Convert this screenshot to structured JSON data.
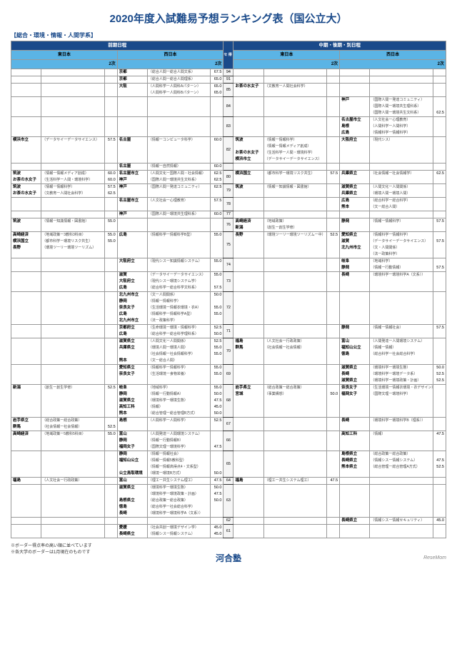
{
  "title": "2020年度入試難易予想ランキング表（国公立大）",
  "category": "【総合・環境・情報・人間学系】",
  "headers": {
    "zenki": "前期日程",
    "chuki": "中期・後期・別日程",
    "east": "東日本",
    "west": "西日本",
    "niji": "2次",
    "center": "セ\n得\n点\n率"
  },
  "rows": [
    {
      "c": "94",
      "wz": [
        [
          "京都",
          "（総合人間ー総合人間文系）",
          "67.5"
        ]
      ]
    },
    {
      "c": "91",
      "wz": [
        [
          "京都",
          "（総合人間ー総合人間理系）",
          "65.0"
        ]
      ]
    },
    {
      "c": "85",
      "wz": [
        [
          "大阪",
          "（人間科学ー人間科Aパターン）",
          "65.0"
        ],
        [
          "",
          "（人間科学ー人間科Bパターン）",
          "65.0"
        ]
      ],
      "ec": [
        [
          "お茶の水女子",
          "（文教育ー人間社会科学）",
          ""
        ]
      ]
    },
    {
      "c": "84",
      "wc": [
        [
          "神戸",
          "（国際人間ー発達コミュニティ）",
          ""
        ],
        [
          "",
          "（国際人間ー環境共生理科系）",
          ""
        ],
        [
          "",
          "（国際人間ー環境共生文科系）",
          "62.5"
        ]
      ]
    },
    {
      "c": "83",
      "wc": [
        [
          "名古屋市立",
          "（人文社会ー心理教育）",
          ""
        ],
        [
          "島根",
          "（人間科学ー人間科学）",
          ""
        ],
        [
          "広島",
          "（情報科学ー情報科学）",
          ""
        ]
      ]
    },
    {
      "c": "82",
      "ez": [
        [
          "横浜市立",
          "（データサイーデータサイエンス）",
          "57.5"
        ]
      ],
      "wz": [
        [
          "名古屋",
          "（情報ーコンピュータ科学）",
          "60.0"
        ]
      ],
      "ec": [
        [
          "筑波",
          "（情報ー情報科学）",
          ""
        ],
        [
          "",
          "（情報ー情報メディア創成）",
          ""
        ],
        [
          "お茶の水女子",
          "（生活科学ー人間・環境科学）",
          ""
        ],
        [
          "横浜市立",
          "（データサイーデータサイエンス）",
          ""
        ]
      ],
      "wc": [
        [
          "大阪府立",
          "（現代シス）",
          ""
        ]
      ]
    },
    {
      "c": "",
      "wz": [
        [
          "名古屋",
          "（情報ー自然情報）",
          "60.0"
        ]
      ]
    },
    {
      "c": "80",
      "ez": [
        [
          "筑波",
          "（情報ー情報メディア創成）",
          "60.0"
        ],
        [
          "お茶の水女子",
          "（生活科学ー人間・環境科学）",
          "60.0"
        ]
      ],
      "wz": [
        [
          "名古屋市立",
          "（人間文化ー国際人間・社会情報）",
          "62.5"
        ],
        [
          "神戸",
          "（国際人間ー環境共生文科系）",
          "62.5"
        ]
      ],
      "ec": [
        [
          "横浜国立",
          "（都市科学ー環境リスク共生）",
          "57.5"
        ]
      ],
      "wc": [
        [
          "兵庫県立",
          "（社会情報ー社会情報学）",
          "62.5"
        ]
      ]
    },
    {
      "c": "79",
      "ez": [
        [
          "筑波",
          "（情報ー情報科学）",
          "57.5"
        ],
        [
          "お茶の水女子",
          "（文教育ー人間社会科学）",
          "62.5"
        ]
      ],
      "wz": [
        [
          "神戸",
          "（国際人間ー発達コミュニティ）",
          "62.5"
        ]
      ],
      "ec": [
        [
          "筑波",
          "（情報ー知識情報・図書館）",
          ""
        ]
      ],
      "wc": [
        [
          "滋賀県立",
          "（人間文化ー人間関係）",
          ""
        ],
        [
          "兵庫県立",
          "（環境人間ー環境人間）",
          ""
        ]
      ]
    },
    {
      "c": "78",
      "wz": [
        [
          "名古屋市立",
          "（人文社会ー心理教育）",
          "57.5"
        ]
      ],
      "wc": [
        [
          "広島",
          "（総合科学ー総合科学）",
          ""
        ],
        [
          "熊本",
          "（文ー総合人間）",
          ""
        ]
      ]
    },
    {
      "c": "77",
      "wz": [
        [
          "神戸",
          "（国際人間ー環境共生理科系）",
          "60.0"
        ]
      ]
    },
    {
      "c": "76",
      "ez": [
        [
          "筑波",
          "（情報ー知識情報・図書館）",
          "55.0"
        ]
      ],
      "ec": [
        [
          "高崎経済",
          "（地域政策）",
          ""
        ],
        [
          "新潟",
          "（創生ー創生学修）",
          ""
        ]
      ],
      "wc": [
        [
          "静岡",
          "（情報ー情報科学）",
          "57.5"
        ]
      ]
    },
    {
      "c": "75",
      "ez": [
        [
          "高崎経済",
          "（地域政策ー3教科3科目）",
          "55.0"
        ],
        [
          "横浜国立",
          "（都市科学ー環境リスク共生）",
          "55.0"
        ],
        [
          "長野",
          "（環境ツーリー環境ツーリズム）",
          ""
        ]
      ],
      "wz": [
        [
          "広島",
          "（情報科学ー情報科学B型）",
          "55.0"
        ]
      ],
      "ec": [
        [
          "長野",
          "（環境ツーリー環境ツーリズムー中）",
          "52.5"
        ]
      ],
      "wc": [
        [
          "愛知県立",
          "（情報科学ー情報科学）",
          ""
        ],
        [
          "滋賀",
          "（データサイーデータサイエンス）",
          "57.5"
        ],
        [
          "北九州市立",
          "（文・人間関係）",
          ""
        ],
        [
          "",
          "（法ー政策科学）",
          ""
        ]
      ]
    },
    {
      "c": "74",
      "wz": [
        [
          "大阪府立",
          "（現代シスー知識情報システム）",
          "55.0"
        ]
      ],
      "wc": [
        [
          "岐阜",
          "（地域科学）",
          ""
        ],
        [
          "静岡",
          "（情報ー行動情報）",
          "57.5"
        ]
      ]
    },
    {
      "c": "73",
      "wz": [
        [
          "滋賀",
          "（データサイーデータサイエンス）",
          "55.0"
        ],
        [
          "大阪府立",
          "（現代シスー環境システム学）",
          ""
        ],
        [
          "広島",
          "（総合科学ー総合科学文科系）",
          "57.5"
        ]
      ],
      "wc": [
        [
          "長崎",
          "（環境科学ー環境科学A（文系））",
          ""
        ]
      ]
    },
    {
      "c": "72",
      "wz": [
        [
          "北九州市立",
          "（文ー人間関係）",
          "50.0"
        ],
        [
          "静岡",
          "（情報ー情報科学）",
          ""
        ],
        [
          "奈良女子",
          "（生活環境ー情報衣環境・衣A）",
          "55.0"
        ],
        [
          "広島",
          "（情報科学ー情報科学A型）",
          "55.0"
        ],
        [
          "北九州市立",
          "（法ー政策科学）",
          ""
        ]
      ]
    },
    {
      "c": "71",
      "wz": [
        [
          "京都府立",
          "（生命環境ー環境・情報科学）",
          "52.5"
        ],
        [
          "広島",
          "（総合科学ー総合科学理科系）",
          "50.0"
        ]
      ],
      "wc": [
        [
          "静岡",
          "（情報ー情報社会）",
          "57.5"
        ]
      ]
    },
    {
      "c": "70",
      "wz": [
        [
          "滋賀県立",
          "（人間文化ー人間関係）",
          "52.5"
        ],
        [
          "兵庫県立",
          "（環境人間ー環境人間）",
          "55.0"
        ],
        [
          "",
          "（社会情報ー社会情報科学）",
          "55.0"
        ],
        [
          "熊本",
          "（文ー総合人間）",
          ""
        ]
      ],
      "ec": [
        [
          "福島",
          "（人文社会ー行政政策）",
          ""
        ],
        [
          "群馬",
          "（社会情報ー社会情報）",
          ""
        ]
      ],
      "wc": [
        [
          "富山",
          "（人間発達ー人間環境システム）",
          ""
        ],
        [
          "福知山公立",
          "（情報ー情報）",
          ""
        ],
        [
          "徳島",
          "（総合科学ー社会総合科学）",
          ""
        ]
      ]
    },
    {
      "c": "69",
      "wz": [
        [
          "愛知県立",
          "（情報科学ー情報科学）",
          "55.0"
        ],
        [
          "奈良女子",
          "（生活環境ー食物栄養）",
          "55.0"
        ]
      ],
      "wc": [
        [
          "滋賀県立",
          "（環境科学ー環境生態）",
          "50.0"
        ],
        [
          "長崎",
          "（環境科学ー環境データ系）",
          "52.5"
        ],
        [
          "滋賀県立",
          "（環境科学ー環境政策・計画）",
          "52.5"
        ]
      ]
    },
    {
      "c": "68",
      "ez": [
        [
          "新潟",
          "（創生ー創生学修）",
          "52.5"
        ]
      ],
      "wz": [
        [
          "岐阜",
          "（地域科学）",
          "55.0"
        ],
        [
          "静岡",
          "（情報ー行動情報A）",
          "50.0"
        ],
        [
          "滋賀県立",
          "（環境科学ー環境生態）",
          "47.5"
        ],
        [
          "高知工科",
          "（情報）",
          "45.0"
        ],
        [
          "熊本",
          "（総合管理ー総合管理B方式）",
          "50.0"
        ]
      ],
      "ec": [
        [
          "岩手県立",
          "（総合政策ー総合政策）",
          ""
        ],
        [
          "宮城",
          "（事業構想）",
          "50.0"
        ]
      ],
      "wc": [
        [
          "奈良女子",
          "（生活環境ー情報衣環境・衣デザイン）",
          ""
        ],
        [
          "福岡女子",
          "（国際文理ー環境科学）",
          ""
        ]
      ]
    },
    {
      "c": "67",
      "ez": [
        [
          "岩手県立",
          "（総合政策ー総合政策）",
          ""
        ],
        [
          "群馬",
          "（社会情報ー社会情報）",
          "52.5"
        ]
      ],
      "wz": [
        [
          "島根",
          "（人間科学ー人間科学）",
          "52.5"
        ]
      ],
      "wc": [
        [
          "長崎",
          "（環境科学ー環境科学B（理系））",
          ""
        ]
      ]
    },
    {
      "c": "66",
      "ez": [
        [
          "高崎経済",
          "（地域政策ー5教科5科目）",
          "55.0"
        ]
      ],
      "wz": [
        [
          "富山",
          "（人間発達ー人間環境システム）",
          ""
        ],
        [
          "静岡",
          "（情報ー行動情報B）",
          ""
        ],
        [
          "福岡女子",
          "（国際文理ー環境科学）",
          "47.5"
        ]
      ],
      "wc": [
        [
          "高知工科",
          "（情報）",
          "47.5"
        ]
      ]
    },
    {
      "c": "65",
      "wz": [
        [
          "静岡",
          "（情報ー情報社会）",
          ""
        ],
        [
          "福知山公立",
          "（情報ー情報5教科型）",
          ""
        ],
        [
          "",
          "（情報ー情報高得点4・文系型）",
          ""
        ],
        [
          "公立鳥取環境",
          "（環境ー環境B方式）",
          "50.0"
        ]
      ],
      "wc": [
        [
          "島根県立",
          "（総合政策ー総合政策）",
          ""
        ],
        [
          "長崎県立",
          "（情報シスー情報システム）",
          "47.5"
        ],
        [
          "熊本県立",
          "（総合管理ー総合管理A方式）",
          "52.5"
        ]
      ]
    },
    {
      "c": "64",
      "ez": [
        [
          "福島",
          "（人文社会ー行政政策）",
          ""
        ]
      ],
      "wz": [
        [
          "富山",
          "（理工ー共生システム理工）",
          "47.5"
        ]
      ],
      "ec": [
        [
          "福島",
          "（理工ー共生システム理工）",
          "47.5"
        ]
      ]
    },
    {
      "c": "63",
      "wz": [
        [
          "滋賀県立",
          "（環境科学ー環境生態）",
          "50.0"
        ],
        [
          "",
          "（環境科学ー環境政策・計画）",
          "47.5"
        ],
        [
          "島根県立",
          "（総合政策ー総合政策）",
          "50.0"
        ],
        [
          "徳島",
          "（総合科学ー社会総合科学）",
          ""
        ],
        [
          "長崎",
          "（環境科学ー環境科学A（文系））",
          ""
        ]
      ]
    },
    {
      "c": "62",
      "wc": [
        [
          "長崎県立",
          "（情報シスー情報セキュリティ）",
          "45.0"
        ]
      ]
    },
    {
      "c": "61",
      "wz": [
        [
          "愛媛",
          "（社会共創ー環境デザイン学）",
          "45.0"
        ],
        [
          "長崎県立",
          "（情報シスー情報システム）",
          "45.0"
        ]
      ]
    }
  ],
  "notes": [
    "※ボーダー得点率の高い順に並べています",
    "※各大学のボーダーは1月現在のものです"
  ],
  "logo": "河合塾",
  "page": "1",
  "rightFooter": "ReseMom"
}
